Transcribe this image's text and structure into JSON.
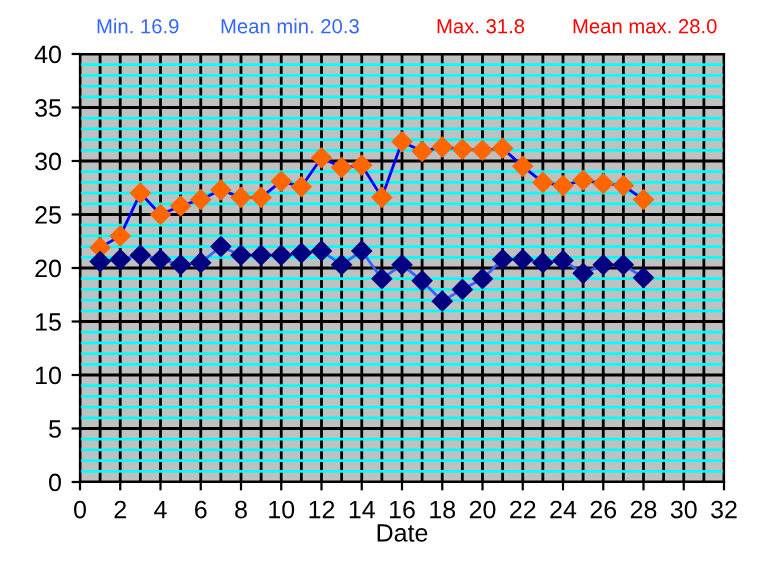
{
  "chart_data": {
    "type": "line",
    "xlabel": "Date",
    "annotations": [
      "Min. 16.9",
      "Mean min. 20.3",
      "Max. 31.8",
      "Mean max. 28.0"
    ],
    "x": [
      1,
      2,
      3,
      4,
      5,
      6,
      7,
      8,
      9,
      10,
      11,
      12,
      13,
      14,
      15,
      16,
      17,
      18,
      19,
      20,
      21,
      22,
      23,
      24,
      25,
      26,
      27,
      28
    ],
    "series": [
      {
        "color": "#ff6600",
        "values": [
          21.9,
          23.0,
          27.0,
          25.0,
          25.8,
          26.4,
          27.3,
          26.6,
          26.6,
          28.1,
          27.6,
          30.3,
          29.4,
          29.6,
          26.6,
          31.8,
          30.9,
          31.3,
          31.1,
          31.0,
          31.2,
          29.5,
          28.0,
          27.7,
          28.2,
          27.9,
          27.7,
          26.4
        ]
      },
      {
        "color": "#000080",
        "values": [
          20.6,
          20.8,
          21.2,
          20.8,
          20.3,
          20.5,
          22.0,
          21.2,
          21.2,
          21.2,
          21.4,
          21.6,
          20.3,
          21.6,
          19.0,
          20.3,
          18.8,
          16.9,
          18.0,
          19.0,
          20.8,
          20.8,
          20.5,
          20.7,
          19.5,
          20.3,
          20.3,
          19.1
        ]
      }
    ],
    "xlim": [
      0,
      32
    ],
    "xticks": [
      0,
      2,
      4,
      6,
      8,
      10,
      12,
      14,
      16,
      18,
      20,
      22,
      24,
      26,
      28,
      30,
      32
    ],
    "ylim": [
      0,
      40
    ],
    "yticks": [
      0,
      {
        "value": 1,
        "label": null
      },
      {
        "value": 2,
        "label": null
      },
      {
        "value": 3,
        "label": null
      },
      {
        "value": 4,
        "label": null
      },
      5,
      {
        "value": 6,
        "label": null
      },
      {
        "value": 7,
        "label": null
      },
      {
        "value": 8,
        "label": null
      },
      {
        "value": 9,
        "label": null
      },
      10,
      {
        "value": 11,
        "label": null
      },
      {
        "value": 12,
        "label": null
      },
      {
        "value": 13,
        "label": null
      },
      {
        "value": 14,
        "label": null
      },
      15,
      {
        "value": 16,
        "label": null
      },
      {
        "value": 17,
        "label": null
      },
      {
        "value": 18,
        "label": null
      },
      {
        "value": 19,
        "label": null
      },
      20,
      {
        "value": 21,
        "label": null
      },
      {
        "value": 22,
        "label": null
      },
      {
        "value": 23,
        "label": null
      },
      {
        "value": 24,
        "label": null
      },
      25,
      {
        "value": 26,
        "label": null
      },
      {
        "value": 27,
        "label": null
      },
      {
        "value": 28,
        "label": null
      },
      {
        "value": 29,
        "label": null
      },
      30,
      {
        "value": 31,
        "label": null
      },
      {
        "value": 32,
        "label": null
      },
      {
        "value": 33,
        "label": null
      },
      {
        "value": 34,
        "label": null
      },
      35,
      {
        "value": 36,
        "label": null
      },
      {
        "value": 37,
        "label": null
      },
      {
        "value": 38,
        "label": null
      },
      {
        "value": 39,
        "label": null
      },
      40
    ],
    "grid": true,
    "marker": "diamond",
    "line_style": "solid",
    "legend": false
  }
}
